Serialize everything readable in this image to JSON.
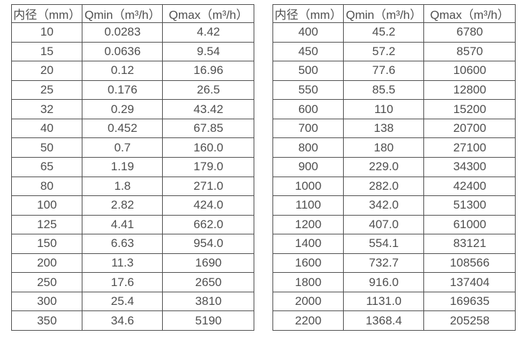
{
  "colors": {
    "border": "#4d4d4d",
    "text": "#4f4f4f",
    "background": "#ffffff"
  },
  "tables": [
    {
      "id": "flow-table-small-diameters",
      "headers": [
        "内径（mm）",
        "Qmin（m³/h）",
        "Qmax（m³/h）"
      ],
      "rows": [
        [
          "10",
          "0.0283",
          "4.42"
        ],
        [
          "15",
          "0.0636",
          "9.54"
        ],
        [
          "20",
          "0.12",
          "16.96"
        ],
        [
          "25",
          "0.176",
          "26.5"
        ],
        [
          "32",
          "0.29",
          "43.42"
        ],
        [
          "40",
          "0.452",
          "67.85"
        ],
        [
          "50",
          "0.7",
          "160.0"
        ],
        [
          "65",
          "1.19",
          "179.0"
        ],
        [
          "80",
          "1.8",
          "271.0"
        ],
        [
          "100",
          "2.82",
          "424.0"
        ],
        [
          "125",
          "4.41",
          "662.0"
        ],
        [
          "150",
          "6.63",
          "954.0"
        ],
        [
          "200",
          "11.3",
          "1690"
        ],
        [
          "250",
          "17.6",
          "2650"
        ],
        [
          "300",
          "25.4",
          "3810"
        ],
        [
          "350",
          "34.6",
          "5190"
        ]
      ]
    },
    {
      "id": "flow-table-large-diameters",
      "headers": [
        "内径（mm）",
        "Qmin（m³/h）",
        "Qmax（m³/h）"
      ],
      "rows": [
        [
          "400",
          "45.2",
          "6780"
        ],
        [
          "450",
          "57.2",
          "8570"
        ],
        [
          "500",
          "77.6",
          "10600"
        ],
        [
          "550",
          "85.5",
          "12800"
        ],
        [
          "600",
          "110",
          "15200"
        ],
        [
          "700",
          "138",
          "20700"
        ],
        [
          "800",
          "180",
          "27100"
        ],
        [
          "900",
          "229.0",
          "34300"
        ],
        [
          "1000",
          "282.0",
          "42400"
        ],
        [
          "1100",
          "342.0",
          "51300"
        ],
        [
          "1200",
          "407.0",
          "61000"
        ],
        [
          "1400",
          "554.1",
          "83121"
        ],
        [
          "1600",
          "732.7",
          "108566"
        ],
        [
          "1800",
          "916.0",
          "137404"
        ],
        [
          "2000",
          "1131.0",
          "169635"
        ],
        [
          "2200",
          "1368.4",
          "205258"
        ]
      ]
    }
  ]
}
